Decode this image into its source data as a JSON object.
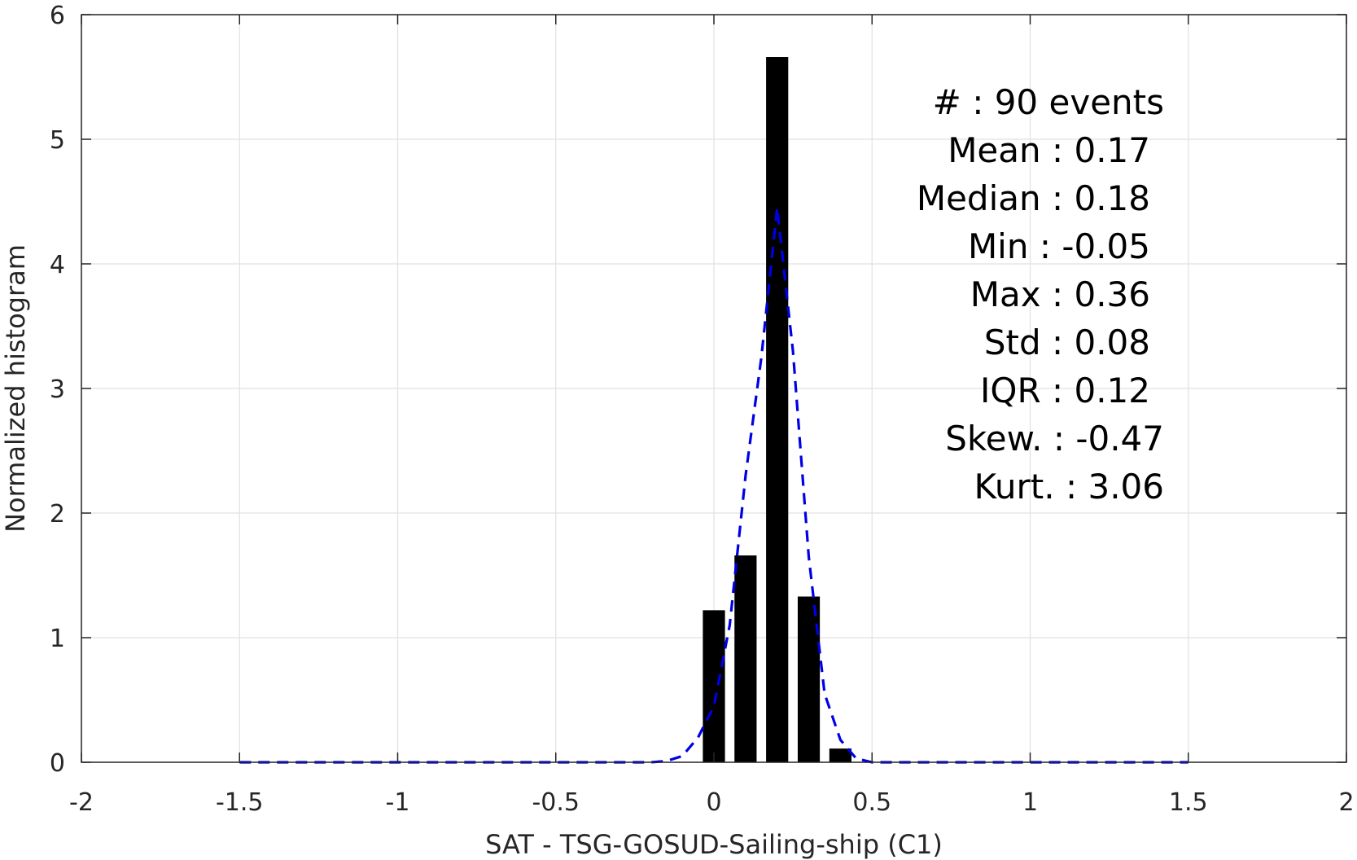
{
  "chart_data": {
    "type": "bar",
    "xlabel": "SAT - TSG-GOSUD-Sailing-ship (C1)",
    "ylabel": "Normalized histogram",
    "xlim": [
      -2,
      2
    ],
    "ylim": [
      0,
      6
    ],
    "x_ticks": [
      "-2",
      "-1.5",
      "-1",
      "-0.5",
      "0",
      "0.5",
      "1",
      "1.5",
      "2"
    ],
    "y_ticks": [
      "0",
      "1",
      "2",
      "3",
      "4",
      "5",
      "6"
    ],
    "grid": true,
    "bar_color": "#000000",
    "bars": [
      {
        "x": 0.0,
        "value": 1.22
      },
      {
        "x": 0.1,
        "value": 1.66
      },
      {
        "x": 0.2,
        "value": 5.66
      },
      {
        "x": 0.3,
        "value": 1.33
      },
      {
        "x": 0.4,
        "value": 0.11
      }
    ],
    "bar_width": 0.07,
    "fit_curve": {
      "color": "#0000e6",
      "style": "dashed",
      "x": [
        -1.5,
        -0.2,
        -0.15,
        -0.1,
        -0.05,
        0.0,
        0.05,
        0.1,
        0.15,
        0.2,
        0.25,
        0.3,
        0.35,
        0.4,
        0.45,
        0.5,
        1.5
      ],
      "y": [
        0,
        0,
        0.01,
        0.05,
        0.2,
        0.45,
        1.1,
        2.3,
        3.25,
        4.45,
        3.3,
        1.65,
        0.55,
        0.18,
        0.03,
        0,
        0
      ]
    },
    "stats": [
      {
        "label": "#  : 90 events"
      },
      {
        "label": "Mean : 0.17"
      },
      {
        "label": "Median : 0.18"
      },
      {
        "label": "Min : -0.05"
      },
      {
        "label": "Max : 0.36"
      },
      {
        "label": "Std : 0.08"
      },
      {
        "label": "IQR : 0.12"
      },
      {
        "label": "Skew. : -0.47"
      },
      {
        "label": "Kurt. : 3.06"
      }
    ]
  }
}
